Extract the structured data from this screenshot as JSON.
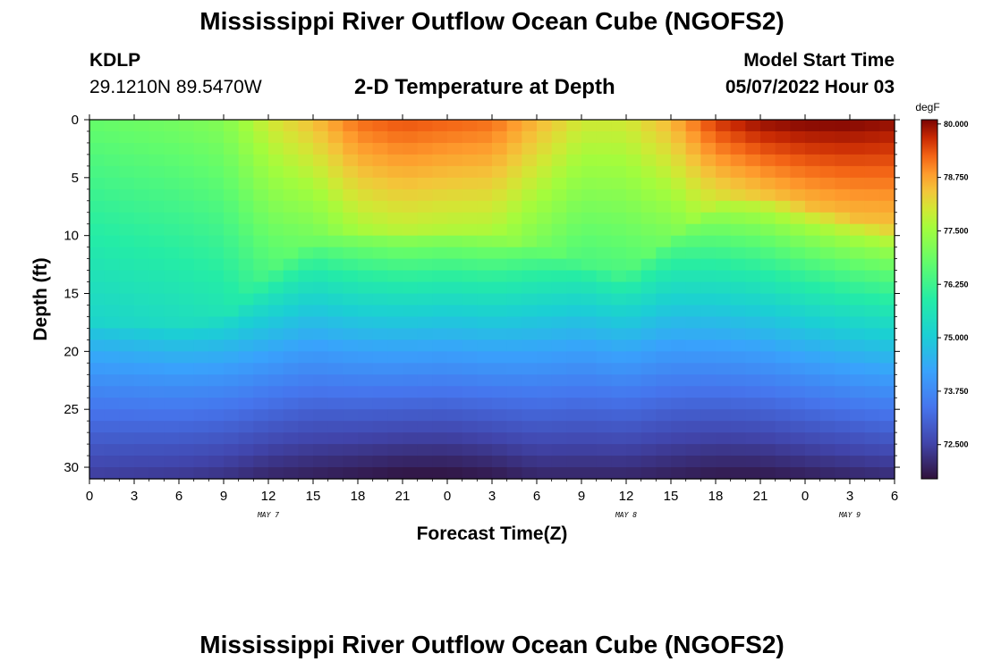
{
  "header": {
    "title": "Mississippi River Outflow Ocean Cube (NGOFS2)",
    "station_id": "KDLP",
    "station_coords": "29.1210N  89.5470W",
    "plot_title": "2-D Temperature at Depth",
    "start_label": "Model Start Time",
    "start_value": "05/07/2022 Hour 03"
  },
  "footer": {
    "title": "Mississippi River Outflow Ocean Cube (NGOFS2)"
  },
  "chart_data": {
    "type": "heatmap",
    "xlabel": "Forecast Time(Z)",
    "ylabel": "Depth (ft)",
    "x_tick_labels": [
      "0",
      "3",
      "6",
      "9",
      "12",
      "15",
      "18",
      "21",
      "0",
      "3",
      "6",
      "9",
      "12",
      "15",
      "18",
      "21",
      "0",
      "3",
      "6"
    ],
    "x_range_hours": [
      0,
      54
    ],
    "date_labels": [
      {
        "label": "MAY 7",
        "hour": 12
      },
      {
        "label": "MAY 8",
        "hour": 36
      },
      {
        "label": "MAY 9",
        "hour": 51
      }
    ],
    "y_tick_labels": [
      "0",
      "5",
      "10",
      "15",
      "20",
      "25",
      "30"
    ],
    "ylim": [
      0,
      31
    ],
    "y_reversed": true,
    "colorbar": {
      "unit": "degF",
      "tick_labels": [
        "80.000",
        "78.750",
        "77.500",
        "76.250",
        "75.000",
        "73.750",
        "72.500"
      ],
      "range": [
        71.7,
        80.1
      ]
    },
    "field_profile": {
      "description_hours": [
        0,
        6,
        9,
        12,
        15,
        18,
        21,
        24,
        27,
        30,
        33,
        36,
        39,
        42,
        45,
        48,
        51,
        54
      ],
      "thermocline_depth_ft": [
        21.5,
        21.8,
        21.0,
        17.5,
        14.5,
        13.5,
        13.5,
        13.5,
        14.0,
        15.0,
        16.5,
        17.5,
        14.0,
        11.0,
        10.5,
        11.5,
        12.5,
        13.5
      ],
      "surface_temp_degF": [
        76.8,
        77.0,
        77.2,
        78.0,
        78.5,
        79.2,
        79.4,
        79.3,
        79.2,
        78.6,
        78.0,
        78.0,
        78.6,
        79.6,
        80.0,
        80.1,
        80.1,
        80.0
      ],
      "bottom_temp_degF": [
        72.4,
        72.3,
        72.2,
        72.0,
        71.9,
        71.8,
        71.7,
        71.7,
        71.8,
        72.0,
        72.0,
        72.0,
        71.9,
        71.8,
        71.8,
        71.9,
        72.0,
        72.1
      ]
    }
  }
}
